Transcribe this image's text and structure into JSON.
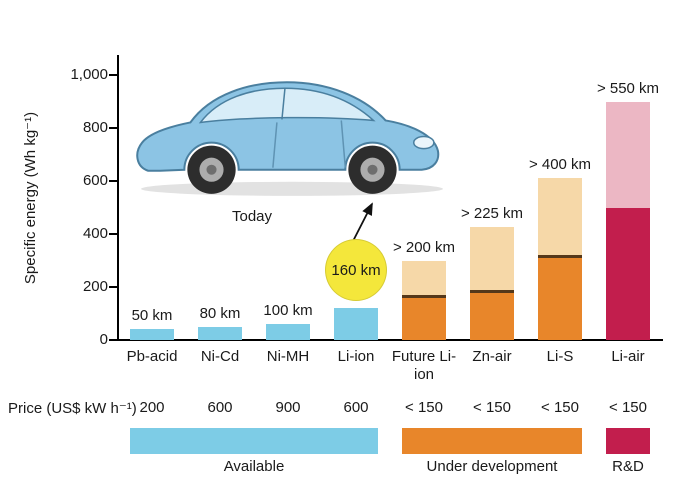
{
  "figure": {
    "today_label": "Today",
    "price_row_label": "Price (US$ kW h⁻¹)"
  },
  "colors": {
    "available": "#7DCCE6",
    "under_dev": "#E8862A",
    "under_dev_light": "#F6D8A8",
    "under_dev_divider": "#55381A",
    "rd": "#C21E4D",
    "rd_light": "#ECB7C4",
    "today_circle": "#F4E73B",
    "axis": "#000000",
    "text": "#1A1A1A"
  },
  "chart_data": {
    "type": "bar",
    "title": "",
    "ylabel": "Specific energy (Wh kg⁻¹)",
    "ylim": [
      0,
      1000
    ],
    "yticks": [
      {
        "value": 0,
        "label": "0"
      },
      {
        "value": 200,
        "label": "200"
      },
      {
        "value": 400,
        "label": "400"
      },
      {
        "value": 600,
        "label": "600"
      },
      {
        "value": 800,
        "label": "800"
      },
      {
        "value": 1000,
        "label": "1,000"
      }
    ],
    "categories": [
      "Pb-acid",
      "Ni-Cd",
      "Ni-MH",
      "Li-ion",
      "Future Li-ion",
      "Zn-air",
      "Li-S",
      "Li-air"
    ],
    "bars": [
      {
        "category": "Pb-acid",
        "group": "available",
        "solid": 40,
        "total": 40,
        "range_label": "50 km",
        "price": "200"
      },
      {
        "category": "Ni-Cd",
        "group": "available",
        "solid": 50,
        "total": 50,
        "range_label": "80 km",
        "price": "600"
      },
      {
        "category": "Ni-MH",
        "group": "available",
        "solid": 60,
        "total": 60,
        "range_label": "100 km",
        "price": "900"
      },
      {
        "category": "Li-ion",
        "group": "available",
        "solid": 120,
        "total": 120,
        "range_label": "160 km",
        "label_style": "circle",
        "price": "600"
      },
      {
        "category": "Future Li-ion",
        "group": "under_dev",
        "solid": 170,
        "total": 300,
        "range_label": "> 200 km",
        "price": "< 150"
      },
      {
        "category": "Zn-air",
        "group": "under_dev",
        "solid": 190,
        "total": 425,
        "range_label": "> 225 km",
        "price": "< 150"
      },
      {
        "category": "Li-S",
        "group": "under_dev",
        "solid": 320,
        "total": 610,
        "range_label": "> 400 km",
        "price": "< 150"
      },
      {
        "category": "Li-air",
        "group": "rd",
        "solid": 500,
        "total": 900,
        "range_label": "> 550 km",
        "price": "< 150"
      }
    ],
    "legend": [
      {
        "label": "Available",
        "group": "available",
        "cols": [
          0,
          3
        ]
      },
      {
        "label": "Under development",
        "group": "under_dev",
        "cols": [
          4,
          6
        ]
      },
      {
        "label": "R&D",
        "group": "rd",
        "cols": [
          7,
          7
        ]
      }
    ]
  }
}
